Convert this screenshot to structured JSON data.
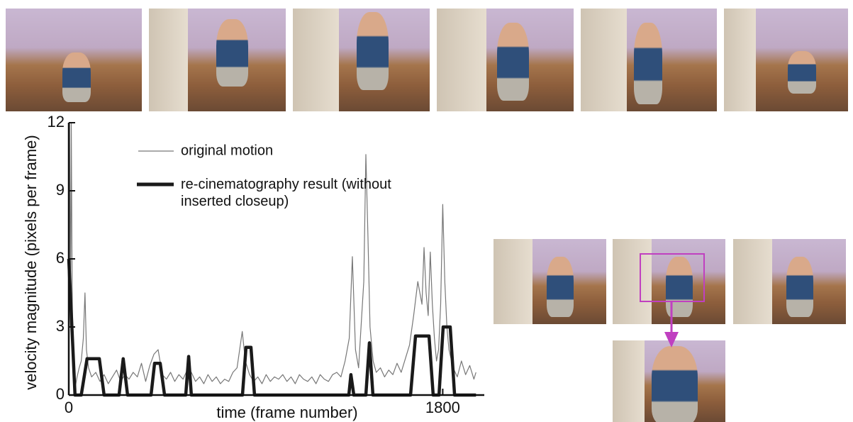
{
  "chart_data": {
    "type": "line",
    "xlabel": "time (frame number)",
    "ylabel": "velocity magnitude (pixels per frame)",
    "xlim": [
      0,
      2000
    ],
    "xticks": [
      0,
      1800
    ],
    "ylim": [
      0,
      12
    ],
    "yticks": [
      0,
      3,
      6,
      9,
      12
    ],
    "series": [
      {
        "name": "original motion",
        "color": "#777777",
        "x": [
          0,
          4,
          8,
          12,
          16,
          20,
          25,
          30,
          40,
          50,
          60,
          70,
          78,
          85,
          95,
          110,
          130,
          150,
          170,
          190,
          210,
          230,
          250,
          270,
          290,
          310,
          330,
          350,
          370,
          390,
          410,
          430,
          450,
          470,
          490,
          510,
          530,
          550,
          570,
          590,
          610,
          630,
          650,
          670,
          690,
          710,
          730,
          750,
          770,
          790,
          810,
          835,
          850,
          870,
          890,
          910,
          930,
          950,
          970,
          990,
          1010,
          1030,
          1050,
          1070,
          1090,
          1110,
          1130,
          1150,
          1170,
          1190,
          1210,
          1230,
          1250,
          1270,
          1290,
          1310,
          1330,
          1350,
          1365,
          1380,
          1395,
          1410,
          1420,
          1430,
          1440,
          1450,
          1465,
          1480,
          1500,
          1520,
          1540,
          1560,
          1580,
          1600,
          1620,
          1640,
          1660,
          1680,
          1700,
          1710,
          1720,
          1730,
          1740,
          1750,
          1760,
          1770,
          1780,
          1790,
          1800,
          1810,
          1820,
          1830,
          1850,
          1870,
          1890,
          1910,
          1930,
          1950,
          1960
        ],
        "values": [
          9,
          12,
          3,
          12,
          5,
          1.5,
          0.5,
          0.3,
          0.8,
          1.2,
          1.5,
          2.5,
          4.5,
          2,
          1.2,
          0.8,
          1.0,
          0.6,
          0.9,
          0.5,
          0.8,
          1.1,
          0.6,
          0.9,
          0.7,
          1.0,
          0.8,
          1.4,
          0.6,
          1.3,
          1.8,
          2.0,
          0.9,
          0.7,
          1.0,
          0.6,
          0.9,
          0.7,
          1.1,
          1.0,
          0.6,
          0.8,
          0.5,
          0.9,
          0.6,
          0.8,
          0.5,
          0.7,
          0.6,
          1.0,
          1.2,
          2.8,
          1.5,
          0.9,
          0.6,
          0.8,
          0.5,
          0.9,
          0.6,
          0.8,
          0.7,
          0.9,
          0.6,
          0.8,
          0.5,
          0.9,
          0.7,
          0.6,
          0.8,
          0.5,
          0.9,
          0.7,
          0.6,
          0.9,
          1.0,
          0.8,
          1.5,
          2.5,
          6.1,
          2.0,
          1.2,
          3.5,
          5.0,
          10.6,
          7.0,
          3.0,
          1.5,
          1.0,
          1.2,
          0.8,
          1.1,
          0.9,
          1.4,
          1.0,
          1.6,
          2.2,
          3.5,
          5.0,
          4.0,
          6.5,
          4.5,
          3.5,
          6.3,
          4.0,
          2.5,
          1.5,
          2.0,
          4.0,
          8.4,
          5.0,
          3.0,
          2.0,
          1.2,
          0.8,
          1.5,
          0.9,
          1.3,
          0.7,
          1.0
        ]
      },
      {
        "name": "re-cinematography result (without inserted closeup)",
        "color": "#1a1a1a",
        "x": [
          0,
          30,
          60,
          88,
          147,
          170,
          242,
          262,
          283,
          396,
          413,
          440,
          461,
          563,
          577,
          590,
          836,
          853,
          877,
          894,
          1348,
          1358,
          1372,
          1430,
          1447,
          1464,
          1645,
          1669,
          1734,
          1754,
          1782,
          1802,
          1836,
          1857,
          1960
        ],
        "values": [
          6,
          0,
          0,
          1.6,
          1.6,
          0,
          0,
          1.6,
          0,
          0,
          1.4,
          1.4,
          0,
          0,
          1.7,
          0,
          0,
          2.1,
          2.1,
          0,
          0,
          0.9,
          0,
          0,
          2.3,
          0,
          0,
          2.6,
          2.6,
          0,
          0,
          3.0,
          3.0,
          0,
          0
        ]
      }
    ]
  }
}
